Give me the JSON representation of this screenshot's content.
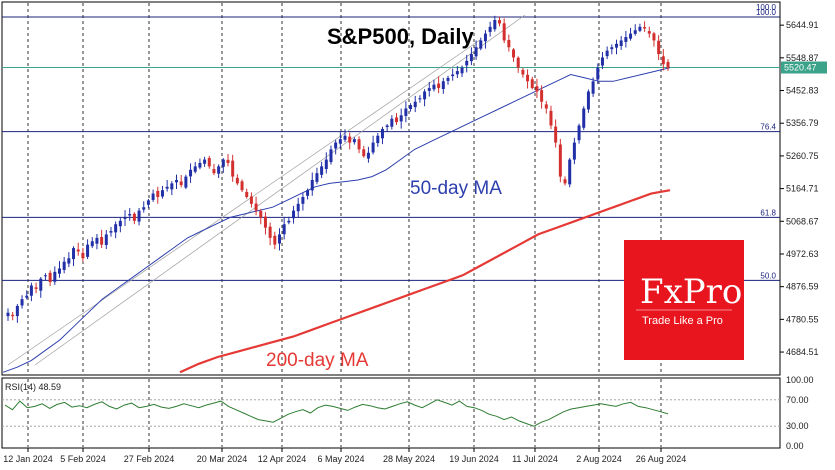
{
  "chart_data": [
    {
      "type": "candlestick",
      "title": "S&P500, Daily",
      "instrument_scale_top": "100.0",
      "current_price_label": "5520.47",
      "ylim": [
        4620,
        5710
      ],
      "y_ticks": [
        "5644.91",
        "5548.87",
        "5452.83",
        "5356.79",
        "5260.75",
        "5164.71",
        "5068.67",
        "4972.63",
        "4876.59",
        "4780.55",
        "4684.51"
      ],
      "x_ticks": [
        "12 Jan 2024",
        "5 Feb 2024",
        "27 Feb 2024",
        "20 Mar 2024",
        "12 Apr 2024",
        "6 May 2024",
        "28 May 2024",
        "19 Jun 2024",
        "11 Jul 2024",
        "2 Aug 2024",
        "26 Aug 2024"
      ],
      "fib_levels": [
        {
          "label": "100.0",
          "price": 5669
        },
        {
          "label": "76.4",
          "price": 5332
        },
        {
          "label": "61.8",
          "price": 5080
        },
        {
          "label": "50.0",
          "price": 4895
        }
      ],
      "reference_line_price": 5520.47,
      "close_series": [
        4800,
        4790,
        4820,
        4840,
        4850,
        4880,
        4870,
        4900,
        4910,
        4890,
        4920,
        4930,
        4950,
        4960,
        4990,
        4980,
        4960,
        5000,
        5010,
        5020,
        5000,
        5030,
        5040,
        5060,
        5070,
        5080,
        5090,
        5070,
        5100,
        5110,
        5130,
        5150,
        5140,
        5160,
        5170,
        5180,
        5190,
        5175,
        5200,
        5220,
        5230,
        5240,
        5250,
        5230,
        5210,
        5230,
        5250,
        5240,
        5200,
        5180,
        5160,
        5140,
        5120,
        5100,
        5080,
        5050,
        5020,
        5000,
        5030,
        5060,
        5070,
        5100,
        5120,
        5140,
        5160,
        5190,
        5210,
        5230,
        5250,
        5280,
        5300,
        5310,
        5320,
        5300,
        5310,
        5280,
        5260,
        5270,
        5300,
        5320,
        5340,
        5350,
        5370,
        5360,
        5380,
        5400,
        5410,
        5420,
        5430,
        5450,
        5460,
        5470,
        5460,
        5480,
        5490,
        5500,
        5510,
        5520,
        5540,
        5560,
        5580,
        5600,
        5620,
        5640,
        5660,
        5650,
        5600,
        5580,
        5550,
        5520,
        5500,
        5480,
        5460,
        5450,
        5420,
        5400,
        5350,
        5300,
        5200,
        5180,
        5250,
        5300,
        5350,
        5400,
        5450,
        5480,
        5520,
        5550,
        5570,
        5580,
        5590,
        5600,
        5610,
        5620,
        5630,
        5640,
        5635,
        5620,
        5600,
        5560,
        5530,
        5520
      ],
      "series": [
        {
          "name": "50-day MA",
          "values": [
            4625,
            4640,
            4660,
            4690,
            4720,
            4760,
            4800,
            4840,
            4870,
            4900,
            4930,
            4960,
            4990,
            5020,
            5040,
            5060,
            5080,
            5090,
            5100,
            5110,
            5130,
            5150,
            5170,
            5180,
            5185,
            5190,
            5200,
            5220,
            5250,
            5280,
            5300,
            5320,
            5340,
            5360,
            5380,
            5400,
            5420,
            5440,
            5460,
            5480,
            5500,
            5490,
            5480,
            5480,
            5490,
            5500,
            5510,
            5520
          ]
        },
        {
          "name": "200-day MA",
          "values": [
            4625,
            4650,
            4670,
            4685,
            4700,
            4715,
            4730,
            4750,
            4770,
            4790,
            4810,
            4830,
            4850,
            4870,
            4890,
            4910,
            4940,
            4970,
            5000,
            5030,
            5050,
            5070,
            5090,
            5110,
            5130,
            5150,
            5160
          ]
        }
      ],
      "annotations": [
        "50-day MA",
        "200-day MA"
      ]
    },
    {
      "type": "line",
      "title": "RSI(14) 48.59",
      "ylim": [
        0,
        100
      ],
      "y_ticks": [
        "100.00",
        "70.00",
        "30.00",
        "0.00"
      ],
      "series": [
        {
          "name": "RSI(14)",
          "values": [
            62,
            55,
            68,
            58,
            60,
            64,
            57,
            63,
            66,
            59,
            61,
            58,
            63,
            67,
            60,
            56,
            62,
            65,
            58,
            60,
            63,
            59,
            57,
            60,
            64,
            61,
            58,
            62,
            65,
            68,
            60,
            55,
            50,
            45,
            40,
            38,
            36,
            42,
            48,
            52,
            55,
            50,
            58,
            62,
            60,
            57,
            54,
            59,
            63,
            61,
            58,
            56,
            60,
            64,
            67,
            62,
            58,
            64,
            70,
            66,
            62,
            68,
            60,
            58,
            54,
            48,
            45,
            40,
            44,
            38,
            34,
            30,
            36,
            40,
            46,
            52,
            56,
            58,
            60,
            62,
            64,
            62,
            60,
            64,
            66,
            60,
            58,
            55,
            52,
            48.59
          ]
        }
      ]
    }
  ],
  "labels": {
    "title": "S&P500, Daily",
    "ma50": "50-day MA",
    "ma200": "200-day MA",
    "rsi": "RSI(14) 48.59",
    "logo_main": "FxPro",
    "logo_sub": "Trade Like a Pro"
  },
  "colors": {
    "bull": "#2230a8",
    "bear": "#d32f2f",
    "ma50": "#2d3fae",
    "ma200": "#e53935",
    "fib": "#1a237e",
    "ref_line": "#3aa38a",
    "rsi_line": "#2e7d32",
    "logo_bg": "#e8141e"
  }
}
